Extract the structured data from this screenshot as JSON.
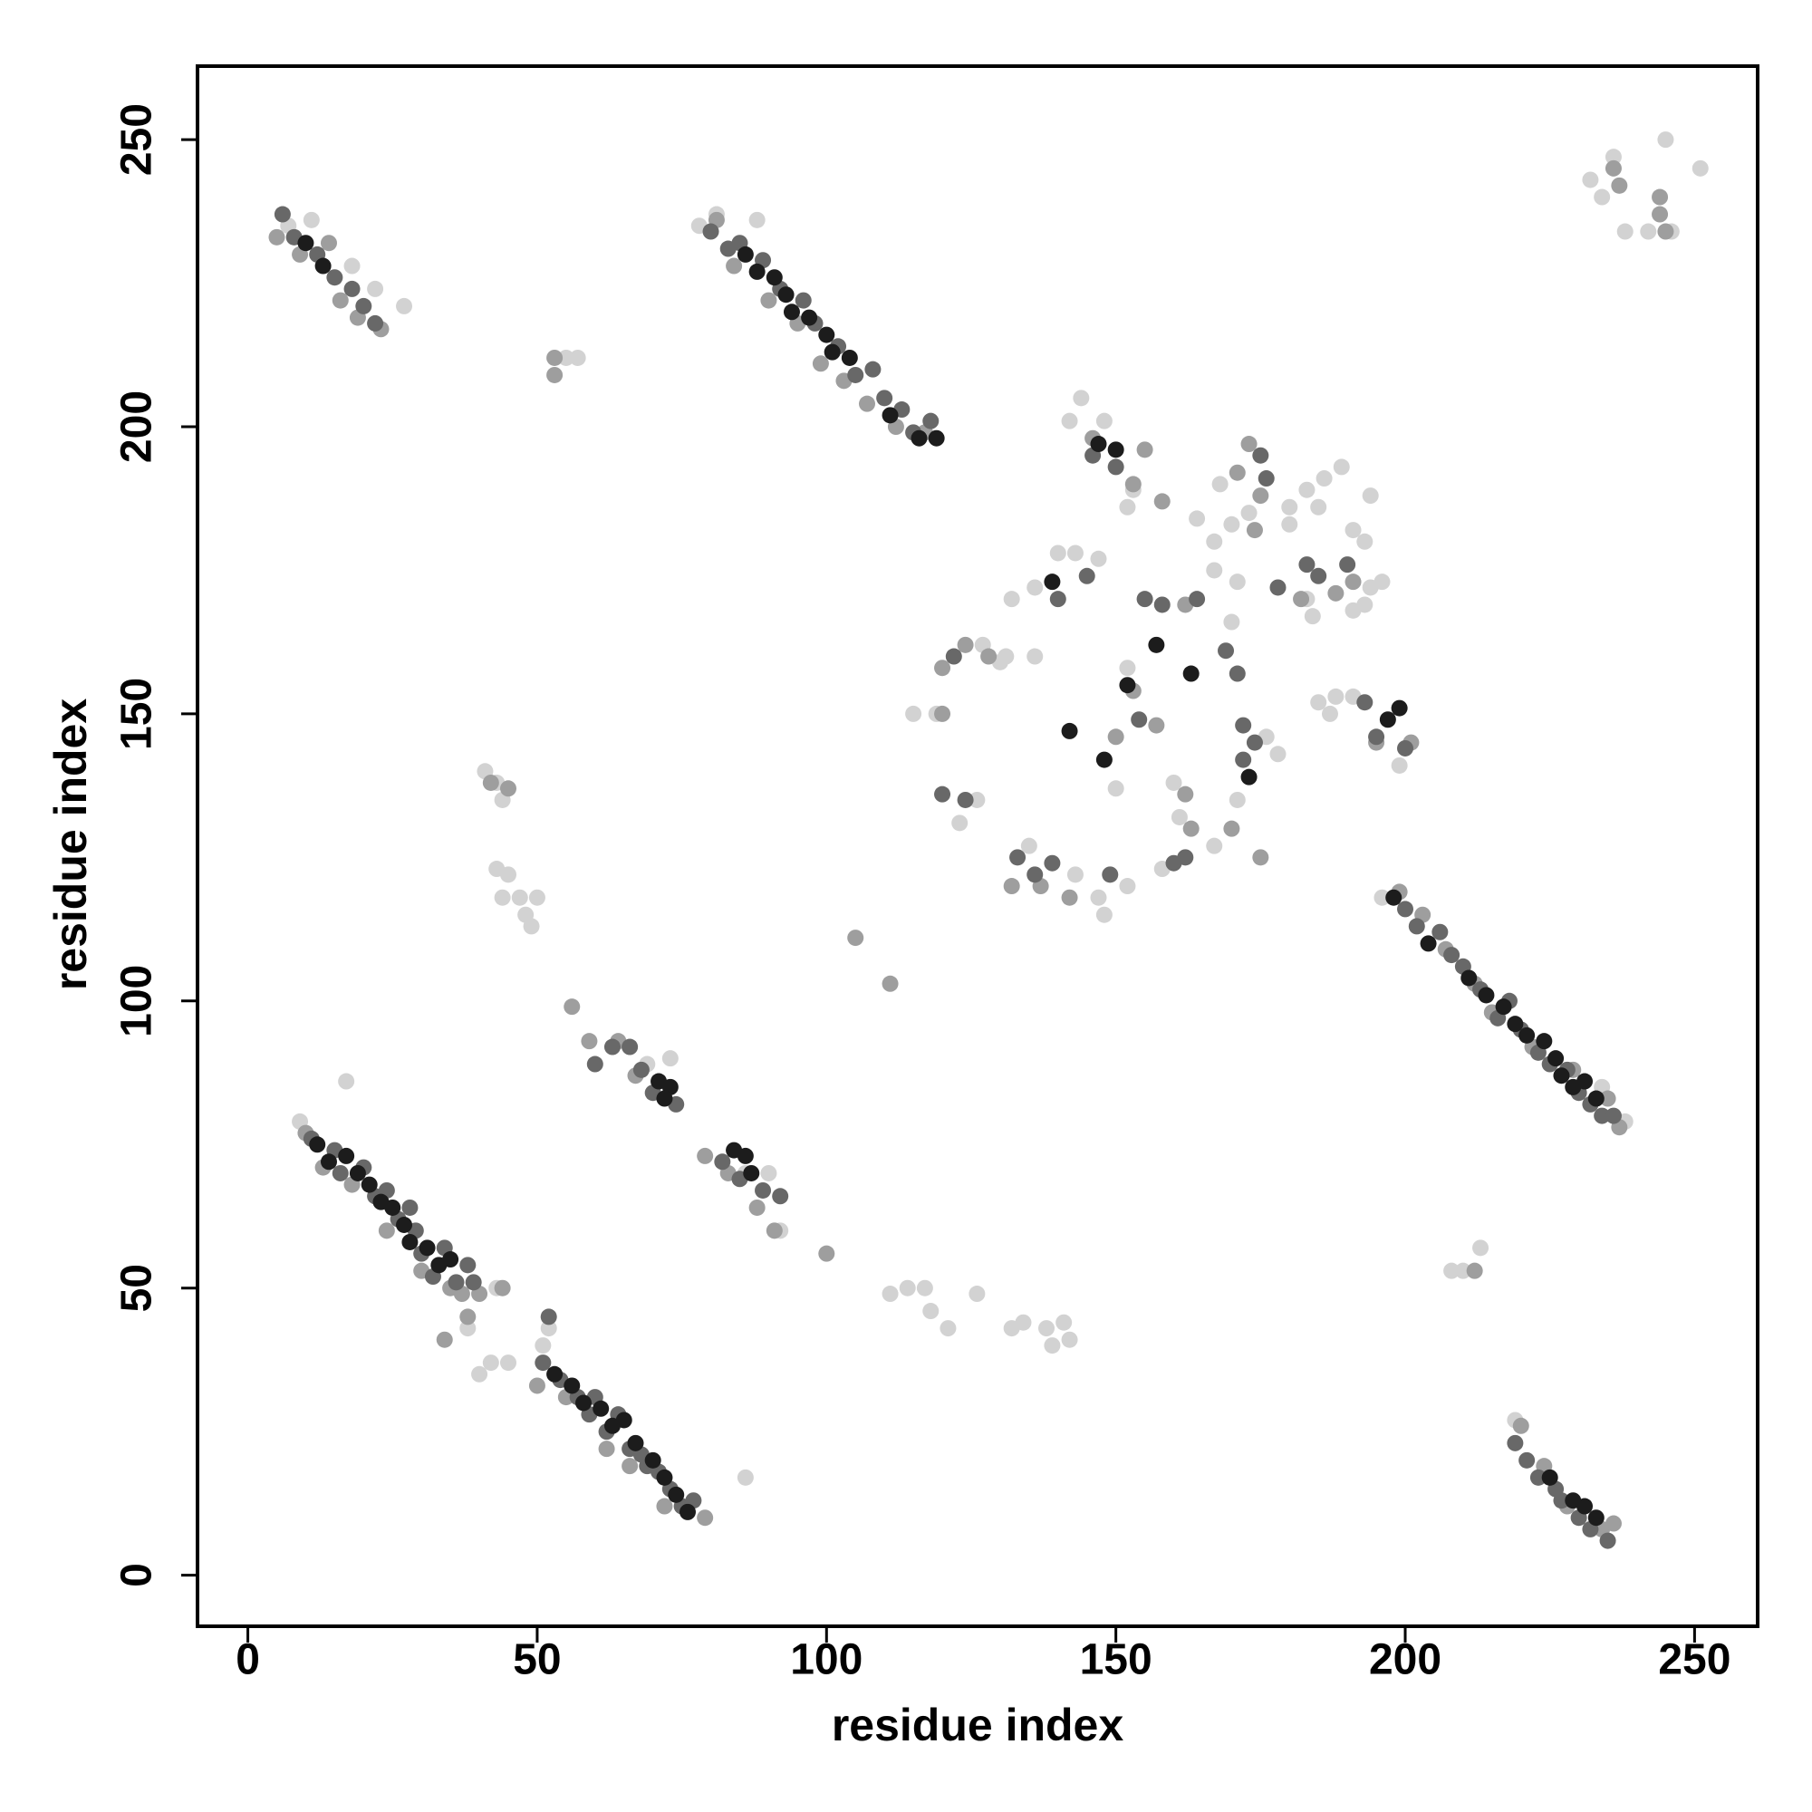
{
  "chart_data": {
    "type": "scatter",
    "xlabel": "residue index",
    "ylabel": "residue index",
    "xlim": [
      -8.7,
      260.9
    ],
    "ylim": [
      -8.9,
      262.8
    ],
    "xticks": [
      0,
      50,
      100,
      150,
      200,
      250
    ],
    "yticks": [
      0,
      50,
      100,
      150,
      200,
      250
    ],
    "grid": false,
    "series": [
      {
        "color": "#d2d2d2",
        "x": [
          9,
          17,
          40,
          42,
          45,
          43,
          38,
          41,
          43,
          44,
          45,
          47,
          48,
          49,
          50,
          44,
          43,
          52,
          51,
          57,
          55,
          86,
          81,
          78,
          88,
          27,
          22,
          18,
          7,
          11,
          111,
          114,
          117,
          118,
          121,
          126,
          132,
          134,
          138,
          139,
          142,
          141,
          208,
          210,
          213,
          219,
          238,
          234,
          196,
          234,
          238,
          242,
          246,
          245,
          251,
          236,
          232,
          183,
          186,
          189,
          180,
          173,
          168,
          167,
          164,
          170,
          184,
          183,
          185,
          191,
          194,
          193,
          194,
          188,
          191,
          185,
          199,
          143,
          147,
          148,
          152,
          158,
          167,
          161,
          160,
          150,
          152,
          142,
          144,
          148,
          152,
          153,
          143,
          147,
          132,
          136,
          140,
          131,
          136,
          119,
          115,
          127,
          130,
          126,
          123,
          135,
          171,
          176,
          178,
          170,
          171,
          167,
          187,
          191,
          196,
          193,
          180,
          69,
          73,
          86,
          90,
          92
        ],
        "y": [
          79,
          86,
          35,
          37,
          37,
          50,
          43,
          140,
          138,
          135,
          122,
          118,
          115,
          113,
          118,
          118,
          123,
          43,
          40,
          212,
          212,
          17,
          237,
          235,
          236,
          221,
          224,
          228,
          235,
          236,
          49,
          50,
          50,
          46,
          43,
          49,
          43,
          44,
          43,
          40,
          41,
          44,
          53,
          53,
          57,
          27,
          79,
          85,
          118,
          240,
          234,
          234,
          234,
          250,
          245,
          247,
          243,
          189,
          191,
          193,
          186,
          185,
          190,
          180,
          184,
          183,
          167,
          170,
          186,
          182,
          188,
          180,
          172,
          153,
          153,
          152,
          141,
          122,
          118,
          115,
          120,
          123,
          127,
          132,
          138,
          137,
          158,
          201,
          205,
          201,
          186,
          189,
          178,
          177,
          170,
          172,
          178,
          160,
          160,
          150,
          150,
          162,
          159,
          135,
          131,
          127,
          135,
          146,
          143,
          166,
          173,
          175,
          150,
          168,
          173,
          169,
          183,
          89,
          90,
          70,
          70,
          60
        ]
      },
      {
        "color": "#9e9e9e",
        "x": [
          10,
          13,
          18,
          24,
          30,
          35,
          37,
          40,
          50,
          55,
          62,
          66,
          72,
          79,
          5,
          9,
          14,
          16,
          19,
          23,
          81,
          84,
          90,
          95,
          99,
          103,
          107,
          112,
          117,
          199,
          203,
          207,
          212,
          215,
          222,
          229,
          235,
          237,
          220,
          224,
          228,
          234,
          236,
          56,
          59,
          64,
          67,
          79,
          83,
          88,
          91,
          100,
          105,
          111,
          34,
          212,
          146,
          153,
          155,
          158,
          171,
          173,
          174,
          175,
          182,
          188,
          191,
          195,
          201,
          120,
          124,
          120,
          128,
          163,
          162,
          170,
          175,
          157,
          150,
          137,
          142,
          132,
          162,
          153,
          44,
          38,
          42,
          45,
          245,
          244,
          237,
          236,
          244,
          53,
          53
        ],
        "y": [
          77,
          71,
          68,
          60,
          53,
          50,
          49,
          49,
          33,
          31,
          22,
          19,
          12,
          10,
          233,
          230,
          232,
          222,
          219,
          217,
          236,
          228,
          222,
          218,
          211,
          208,
          204,
          200,
          199,
          119,
          115,
          109,
          103,
          98,
          92,
          88,
          83,
          78,
          26,
          19,
          12,
          8,
          9,
          99,
          93,
          93,
          87,
          73,
          70,
          64,
          60,
          56,
          111,
          103,
          41,
          53,
          198,
          190,
          196,
          187,
          192,
          197,
          182,
          188,
          170,
          171,
          173,
          145,
          145,
          158,
          162,
          150,
          160,
          130,
          136,
          130,
          125,
          148,
          146,
          120,
          118,
          120,
          169,
          154,
          50,
          45,
          138,
          137,
          234,
          237,
          242,
          245,
          240,
          212,
          209
        ]
      },
      {
        "color": "#686868",
        "x": [
          11,
          15,
          16,
          20,
          22,
          24,
          26,
          28,
          29,
          30,
          32,
          34,
          36,
          38,
          39,
          51,
          52,
          54,
          57,
          59,
          60,
          62,
          64,
          66,
          68,
          69,
          71,
          73,
          75,
          77,
          6,
          8,
          12,
          15,
          18,
          20,
          22,
          80,
          83,
          85,
          89,
          92,
          96,
          98,
          102,
          105,
          108,
          110,
          113,
          115,
          118,
          200,
          202,
          206,
          208,
          210,
          213,
          216,
          218,
          220,
          223,
          225,
          228,
          230,
          232,
          234,
          236,
          219,
          221,
          223,
          226,
          227,
          230,
          232,
          235,
          66,
          68,
          70,
          74,
          82,
          85,
          89,
          92,
          60,
          63,
          140,
          145,
          146,
          150,
          155,
          158,
          164,
          169,
          171,
          172,
          174,
          175,
          176,
          183,
          190,
          193,
          195,
          200,
          120,
          124,
          122,
          133,
          136,
          139,
          149,
          160,
          162,
          172,
          178,
          185,
          154
        ],
        "y": [
          76,
          74,
          70,
          71,
          66,
          67,
          62,
          64,
          60,
          56,
          52,
          57,
          51,
          54,
          51,
          37,
          45,
          34,
          31,
          28,
          31,
          25,
          28,
          22,
          21,
          19,
          18,
          15,
          12,
          13,
          237,
          233,
          230,
          226,
          224,
          221,
          218,
          234,
          231,
          232,
          229,
          224,
          222,
          218,
          214,
          209,
          210,
          205,
          203,
          199,
          201,
          116,
          113,
          112,
          108,
          106,
          102,
          97,
          100,
          95,
          91,
          89,
          88,
          84,
          82,
          80,
          80,
          23,
          20,
          17,
          15,
          13,
          10,
          8,
          6,
          92,
          88,
          84,
          82,
          72,
          69,
          67,
          66,
          89,
          92,
          170,
          174,
          195,
          193,
          170,
          169,
          170,
          161,
          157,
          148,
          145,
          195,
          191,
          176,
          176,
          152,
          146,
          144,
          136,
          135,
          160,
          125,
          122,
          124,
          122,
          124,
          125,
          142,
          172,
          174,
          149
        ]
      },
      {
        "color": "#1c1c1c",
        "x": [
          12,
          14,
          17,
          19,
          21,
          23,
          25,
          27,
          28,
          31,
          33,
          35,
          53,
          56,
          58,
          61,
          63,
          65,
          67,
          70,
          72,
          74,
          76,
          86,
          88,
          91,
          93,
          94,
          97,
          100,
          101,
          104,
          111,
          116,
          119,
          198,
          204,
          211,
          214,
          217,
          219,
          221,
          224,
          226,
          227,
          229,
          231,
          233,
          225,
          229,
          231,
          233,
          71,
          73,
          72,
          86,
          87,
          84,
          10,
          13,
          139,
          148,
          152,
          157,
          163,
          173,
          147,
          150,
          197,
          199,
          142
        ],
        "y": [
          75,
          72,
          73,
          70,
          68,
          65,
          64,
          61,
          58,
          57,
          54,
          55,
          35,
          33,
          30,
          29,
          26,
          27,
          23,
          20,
          17,
          14,
          11,
          230,
          227,
          226,
          223,
          220,
          219,
          216,
          213,
          212,
          202,
          198,
          198,
          118,
          110,
          104,
          101,
          99,
          96,
          94,
          93,
          90,
          87,
          85,
          86,
          83,
          17,
          13,
          12,
          10,
          86,
          85,
          83,
          73,
          70,
          74,
          232,
          228,
          173,
          142,
          155,
          162,
          157,
          139,
          197,
          196,
          149,
          151,
          147
        ]
      }
    ]
  }
}
